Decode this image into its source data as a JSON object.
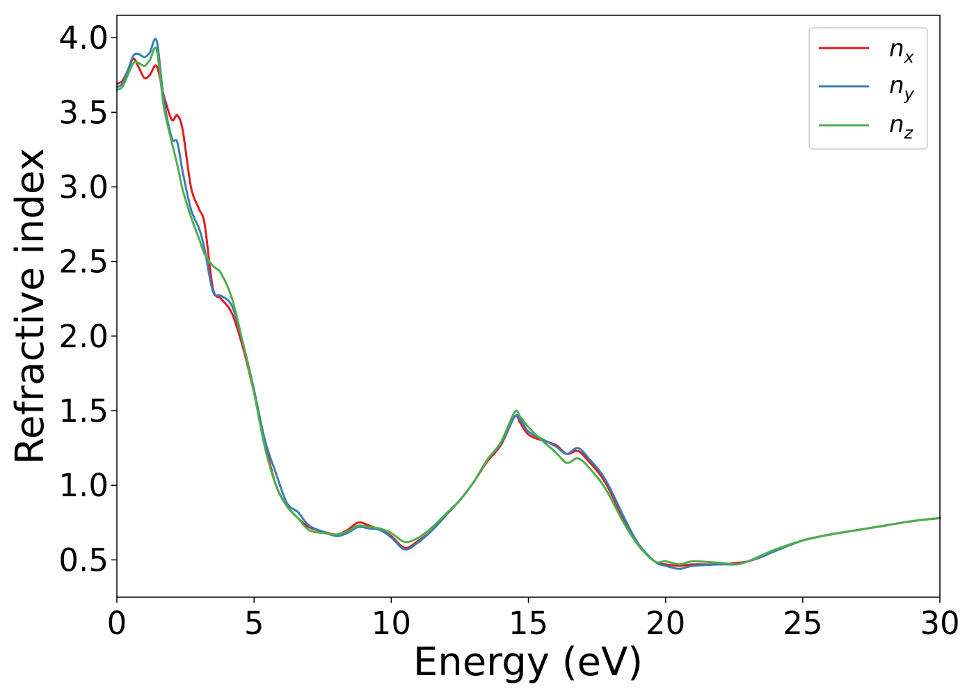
{
  "chart_data": {
    "type": "line",
    "xlabel": "Energy (eV)",
    "ylabel": "Refractive index",
    "xlim": [
      0,
      30
    ],
    "ylim": [
      0.25,
      4.15
    ],
    "xticks": [
      "0",
      "5",
      "10",
      "15",
      "20",
      "25",
      "30"
    ],
    "yticks": [
      "0.5",
      "1.0",
      "1.5",
      "2.0",
      "2.5",
      "3.0",
      "3.5",
      "4.0"
    ],
    "grid": false,
    "legend_position": "top-right",
    "series": [
      {
        "name": "n",
        "subscript": "x",
        "color": "#e41a1c",
        "x": [
          0,
          0.2,
          0.4,
          0.6,
          0.8,
          1.0,
          1.2,
          1.45,
          1.7,
          2.0,
          2.2,
          2.4,
          2.7,
          3.0,
          3.2,
          3.5,
          3.8,
          4.2,
          4.6,
          5.0,
          5.4,
          5.8,
          6.2,
          6.6,
          7.0,
          7.5,
          8.0,
          8.4,
          8.8,
          9.2,
          9.6,
          10.0,
          10.5,
          11.0,
          11.5,
          12.0,
          12.5,
          13.0,
          13.5,
          14.0,
          14.5,
          14.7,
          15.0,
          15.5,
          16.0,
          16.4,
          16.8,
          17.2,
          17.8,
          18.5,
          19.0,
          19.6,
          20.0,
          20.5,
          21.0,
          22.0,
          22.6,
          23.0,
          23.5,
          24.0,
          25.0,
          26.0,
          27.0,
          28.0,
          29.0,
          30.0
        ],
        "y": [
          3.69,
          3.71,
          3.78,
          3.86,
          3.8,
          3.73,
          3.75,
          3.81,
          3.62,
          3.45,
          3.48,
          3.38,
          3.0,
          2.85,
          2.75,
          2.32,
          2.25,
          2.15,
          1.92,
          1.62,
          1.28,
          1.0,
          0.86,
          0.78,
          0.72,
          0.69,
          0.67,
          0.7,
          0.75,
          0.73,
          0.7,
          0.66,
          0.58,
          0.63,
          0.7,
          0.8,
          0.9,
          1.02,
          1.16,
          1.27,
          1.46,
          1.42,
          1.34,
          1.3,
          1.27,
          1.21,
          1.23,
          1.16,
          1.02,
          0.76,
          0.6,
          0.49,
          0.47,
          0.46,
          0.47,
          0.47,
          0.48,
          0.49,
          0.52,
          0.56,
          0.63,
          0.67,
          0.7,
          0.73,
          0.76,
          0.78
        ]
      },
      {
        "name": "n",
        "subscript": "y",
        "color": "#377eb8",
        "x": [
          0,
          0.2,
          0.4,
          0.6,
          0.8,
          1.0,
          1.2,
          1.45,
          1.7,
          2.0,
          2.2,
          2.4,
          2.7,
          3.0,
          3.2,
          3.5,
          3.8,
          4.2,
          4.6,
          5.0,
          5.4,
          5.8,
          6.2,
          6.6,
          7.0,
          7.5,
          8.0,
          8.4,
          8.8,
          9.2,
          9.6,
          10.0,
          10.5,
          11.0,
          11.5,
          12.0,
          12.5,
          13.0,
          13.5,
          14.0,
          14.5,
          14.7,
          15.0,
          15.5,
          16.0,
          16.4,
          16.8,
          17.2,
          17.8,
          18.5,
          19.0,
          19.6,
          20.0,
          20.5,
          21.0,
          22.0,
          22.6,
          23.0,
          23.5,
          24.0,
          25.0,
          26.0,
          27.0,
          28.0,
          29.0,
          30.0
        ],
        "y": [
          3.67,
          3.69,
          3.78,
          3.88,
          3.89,
          3.87,
          3.9,
          3.98,
          3.6,
          3.33,
          3.3,
          3.1,
          2.85,
          2.72,
          2.58,
          2.3,
          2.27,
          2.2,
          1.95,
          1.64,
          1.3,
          1.08,
          0.88,
          0.82,
          0.73,
          0.69,
          0.66,
          0.68,
          0.72,
          0.71,
          0.7,
          0.65,
          0.57,
          0.62,
          0.7,
          0.8,
          0.9,
          1.02,
          1.17,
          1.28,
          1.46,
          1.44,
          1.36,
          1.31,
          1.26,
          1.21,
          1.25,
          1.18,
          1.04,
          0.78,
          0.61,
          0.49,
          0.46,
          0.44,
          0.46,
          0.47,
          0.47,
          0.49,
          0.52,
          0.56,
          0.63,
          0.67,
          0.7,
          0.73,
          0.76,
          0.78
        ]
      },
      {
        "name": "n",
        "subscript": "z",
        "color": "#4daf4a",
        "x": [
          0,
          0.2,
          0.4,
          0.6,
          0.8,
          1.0,
          1.2,
          1.45,
          1.7,
          2.0,
          2.2,
          2.4,
          2.7,
          3.0,
          3.2,
          3.5,
          3.8,
          4.2,
          4.6,
          5.0,
          5.4,
          5.8,
          6.2,
          6.6,
          7.0,
          7.5,
          8.0,
          8.4,
          8.8,
          9.2,
          9.6,
          10.0,
          10.5,
          11.0,
          11.5,
          12.0,
          12.5,
          13.0,
          13.5,
          14.0,
          14.5,
          14.7,
          15.0,
          15.5,
          16.0,
          16.4,
          16.8,
          17.2,
          17.8,
          18.5,
          19.0,
          19.6,
          20.0,
          20.5,
          21.0,
          22.0,
          22.6,
          23.0,
          23.5,
          24.0,
          25.0,
          26.0,
          27.0,
          28.0,
          29.0,
          30.0
        ],
        "y": [
          3.65,
          3.67,
          3.75,
          3.83,
          3.83,
          3.81,
          3.85,
          3.92,
          3.55,
          3.3,
          3.15,
          2.98,
          2.8,
          2.65,
          2.55,
          2.47,
          2.42,
          2.25,
          1.95,
          1.62,
          1.25,
          1.0,
          0.86,
          0.78,
          0.7,
          0.68,
          0.67,
          0.69,
          0.73,
          0.72,
          0.71,
          0.68,
          0.62,
          0.65,
          0.72,
          0.81,
          0.9,
          1.02,
          1.17,
          1.29,
          1.49,
          1.46,
          1.39,
          1.3,
          1.22,
          1.15,
          1.18,
          1.12,
          0.98,
          0.74,
          0.6,
          0.49,
          0.49,
          0.47,
          0.49,
          0.48,
          0.47,
          0.49,
          0.53,
          0.57,
          0.63,
          0.67,
          0.7,
          0.73,
          0.76,
          0.78
        ]
      }
    ]
  }
}
